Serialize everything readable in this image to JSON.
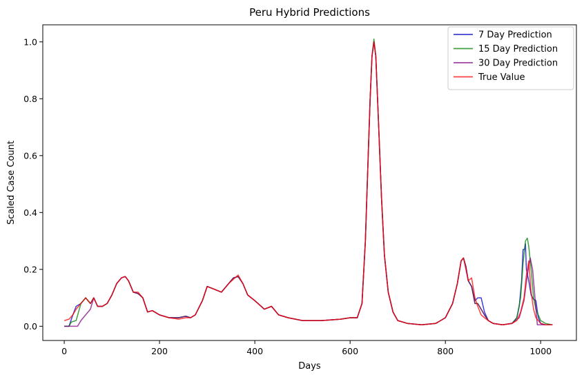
{
  "chart_data": {
    "type": "line",
    "title": "Peru Hybrid Predictions",
    "xlabel": "Days",
    "ylabel": "Scaled Case Count",
    "xlim": [
      -45,
      1075
    ],
    "ylim": [
      -0.05,
      1.06
    ],
    "xticks": [
      0,
      200,
      400,
      600,
      800,
      1000
    ],
    "xtick_labels": [
      "0",
      "200",
      "400",
      "600",
      "800",
      "1000"
    ],
    "yticks": [
      0.0,
      0.2,
      0.4,
      0.6,
      0.8,
      1.0
    ],
    "ytick_labels": [
      "0.0",
      "0.2",
      "0.4",
      "0.6",
      "0.8",
      "1.0"
    ],
    "grid": false,
    "legend_position": "top-right",
    "series": [
      {
        "name": "7 Day Prediction",
        "color": "#0000cc",
        "x": [
          0,
          10,
          18,
          25,
          35,
          45,
          55,
          62,
          70,
          80,
          90,
          100,
          110,
          120,
          128,
          135,
          145,
          155,
          165,
          175,
          185,
          200,
          220,
          240,
          255,
          265,
          275,
          290,
          300,
          315,
          330,
          345,
          355,
          365,
          375,
          385,
          400,
          420,
          435,
          450,
          470,
          500,
          540,
          580,
          600,
          615,
          625,
          632,
          638,
          642,
          646,
          650,
          654,
          660,
          666,
          672,
          680,
          690,
          700,
          720,
          750,
          780,
          800,
          815,
          825,
          833,
          838,
          843,
          848,
          855,
          862,
          868,
          875,
          882,
          890,
          900,
          920,
          940,
          950,
          955,
          960,
          963,
          966,
          968,
          970,
          975,
          980,
          985,
          990,
          995,
          1000,
          1010,
          1025
        ],
        "y": [
          0.0,
          0.0,
          0.04,
          0.07,
          0.08,
          0.1,
          0.08,
          0.1,
          0.07,
          0.07,
          0.08,
          0.11,
          0.15,
          0.17,
          0.175,
          0.16,
          0.12,
          0.115,
          0.1,
          0.05,
          0.055,
          0.04,
          0.03,
          0.03,
          0.035,
          0.03,
          0.04,
          0.09,
          0.14,
          0.13,
          0.12,
          0.15,
          0.17,
          0.175,
          0.15,
          0.11,
          0.09,
          0.06,
          0.07,
          0.04,
          0.03,
          0.02,
          0.02,
          0.025,
          0.03,
          0.03,
          0.08,
          0.3,
          0.6,
          0.8,
          0.95,
          1.0,
          0.95,
          0.7,
          0.45,
          0.25,
          0.12,
          0.05,
          0.02,
          0.01,
          0.005,
          0.01,
          0.03,
          0.08,
          0.15,
          0.23,
          0.24,
          0.21,
          0.16,
          0.14,
          0.09,
          0.1,
          0.1,
          0.05,
          0.02,
          0.01,
          0.005,
          0.01,
          0.03,
          0.07,
          0.16,
          0.27,
          0.27,
          0.29,
          0.2,
          0.16,
          0.11,
          0.095,
          0.09,
          0.03,
          0.01,
          0.005,
          0.005
        ]
      },
      {
        "name": "15 Day Prediction",
        "color": "#008000",
        "x": [
          0,
          10,
          15,
          25,
          35,
          45,
          55,
          62,
          70,
          80,
          90,
          100,
          110,
          120,
          128,
          135,
          145,
          155,
          165,
          175,
          185,
          200,
          220,
          240,
          255,
          265,
          275,
          290,
          300,
          315,
          330,
          345,
          355,
          365,
          375,
          385,
          400,
          420,
          435,
          450,
          470,
          500,
          540,
          580,
          600,
          615,
          625,
          632,
          638,
          642,
          646,
          650,
          654,
          660,
          666,
          672,
          680,
          690,
          700,
          720,
          750,
          780,
          800,
          815,
          825,
          833,
          838,
          843,
          848,
          855,
          862,
          868,
          875,
          882,
          890,
          900,
          920,
          940,
          950,
          958,
          963,
          968,
          972,
          975,
          980,
          985,
          990,
          995,
          1000,
          1010,
          1025
        ],
        "y": [
          0.0,
          0.0,
          0.015,
          0.02,
          0.08,
          0.1,
          0.08,
          0.1,
          0.07,
          0.07,
          0.08,
          0.11,
          0.15,
          0.17,
          0.175,
          0.16,
          0.12,
          0.115,
          0.1,
          0.05,
          0.055,
          0.04,
          0.03,
          0.03,
          0.035,
          0.03,
          0.04,
          0.09,
          0.14,
          0.13,
          0.12,
          0.15,
          0.17,
          0.175,
          0.15,
          0.11,
          0.09,
          0.06,
          0.07,
          0.04,
          0.03,
          0.02,
          0.02,
          0.025,
          0.03,
          0.03,
          0.08,
          0.3,
          0.6,
          0.8,
          0.95,
          1.01,
          0.95,
          0.7,
          0.45,
          0.25,
          0.12,
          0.05,
          0.02,
          0.01,
          0.005,
          0.01,
          0.03,
          0.08,
          0.15,
          0.23,
          0.24,
          0.21,
          0.16,
          0.14,
          0.08,
          0.08,
          0.06,
          0.04,
          0.02,
          0.01,
          0.005,
          0.01,
          0.03,
          0.1,
          0.22,
          0.3,
          0.31,
          0.28,
          0.2,
          0.1,
          0.06,
          0.04,
          0.02,
          0.01,
          0.005
        ]
      },
      {
        "name": "30 Day Prediction",
        "color": "#800080",
        "x": [
          0,
          20,
          28,
          35,
          45,
          55,
          62,
          70,
          80,
          90,
          100,
          110,
          120,
          128,
          135,
          145,
          155,
          165,
          175,
          185,
          200,
          220,
          240,
          255,
          265,
          275,
          290,
          300,
          315,
          330,
          345,
          355,
          365,
          375,
          385,
          400,
          420,
          435,
          450,
          470,
          500,
          540,
          580,
          600,
          615,
          625,
          632,
          638,
          642,
          646,
          650,
          654,
          660,
          666,
          672,
          680,
          690,
          700,
          720,
          750,
          780,
          800,
          815,
          825,
          833,
          838,
          843,
          848,
          855,
          862,
          868,
          875,
          882,
          890,
          900,
          920,
          940,
          955,
          965,
          972,
          978,
          983,
          988,
          993,
          997,
          1010,
          1025
        ],
        "y": [
          0.0,
          0.0,
          0.0,
          0.02,
          0.04,
          0.06,
          0.1,
          0.07,
          0.07,
          0.08,
          0.11,
          0.15,
          0.17,
          0.175,
          0.16,
          0.12,
          0.115,
          0.1,
          0.05,
          0.055,
          0.04,
          0.03,
          0.03,
          0.035,
          0.03,
          0.04,
          0.09,
          0.14,
          0.13,
          0.12,
          0.15,
          0.17,
          0.175,
          0.15,
          0.11,
          0.09,
          0.06,
          0.07,
          0.04,
          0.03,
          0.02,
          0.02,
          0.025,
          0.03,
          0.03,
          0.08,
          0.3,
          0.6,
          0.8,
          0.95,
          1.0,
          0.95,
          0.7,
          0.45,
          0.25,
          0.12,
          0.05,
          0.02,
          0.01,
          0.005,
          0.01,
          0.03,
          0.08,
          0.15,
          0.23,
          0.24,
          0.21,
          0.16,
          0.14,
          0.08,
          0.08,
          0.06,
          0.04,
          0.02,
          0.01,
          0.005,
          0.01,
          0.03,
          0.09,
          0.18,
          0.24,
          0.2,
          0.1,
          0.005,
          0.005,
          0.005,
          0.005
        ]
      },
      {
        "name": "True Value",
        "color": "#ff0000",
        "x": [
          0,
          10,
          18,
          25,
          35,
          45,
          55,
          62,
          70,
          80,
          90,
          100,
          110,
          120,
          128,
          135,
          145,
          155,
          165,
          175,
          185,
          200,
          220,
          240,
          255,
          265,
          275,
          290,
          300,
          315,
          330,
          345,
          355,
          365,
          375,
          385,
          400,
          420,
          435,
          450,
          470,
          500,
          540,
          580,
          600,
          615,
          625,
          632,
          638,
          642,
          646,
          650,
          654,
          660,
          666,
          672,
          680,
          690,
          700,
          720,
          750,
          780,
          800,
          815,
          825,
          833,
          838,
          843,
          848,
          855,
          862,
          868,
          875,
          882,
          890,
          900,
          920,
          940,
          950,
          958,
          965,
          970,
          975,
          980,
          985,
          990,
          995,
          1000,
          1010,
          1025
        ],
        "y": [
          0.02,
          0.025,
          0.04,
          0.06,
          0.08,
          0.1,
          0.08,
          0.1,
          0.07,
          0.07,
          0.08,
          0.11,
          0.15,
          0.17,
          0.175,
          0.16,
          0.12,
          0.12,
          0.1,
          0.05,
          0.055,
          0.04,
          0.03,
          0.025,
          0.03,
          0.03,
          0.04,
          0.09,
          0.14,
          0.13,
          0.12,
          0.15,
          0.165,
          0.18,
          0.15,
          0.11,
          0.09,
          0.06,
          0.07,
          0.04,
          0.03,
          0.02,
          0.02,
          0.025,
          0.03,
          0.03,
          0.08,
          0.3,
          0.6,
          0.8,
          0.95,
          1.0,
          0.95,
          0.7,
          0.45,
          0.25,
          0.12,
          0.05,
          0.02,
          0.01,
          0.005,
          0.01,
          0.03,
          0.08,
          0.15,
          0.23,
          0.24,
          0.2,
          0.16,
          0.17,
          0.1,
          0.07,
          0.04,
          0.03,
          0.02,
          0.01,
          0.005,
          0.01,
          0.02,
          0.05,
          0.1,
          0.18,
          0.23,
          0.12,
          0.06,
          0.03,
          0.02,
          0.01,
          0.005,
          0.005
        ]
      }
    ]
  }
}
